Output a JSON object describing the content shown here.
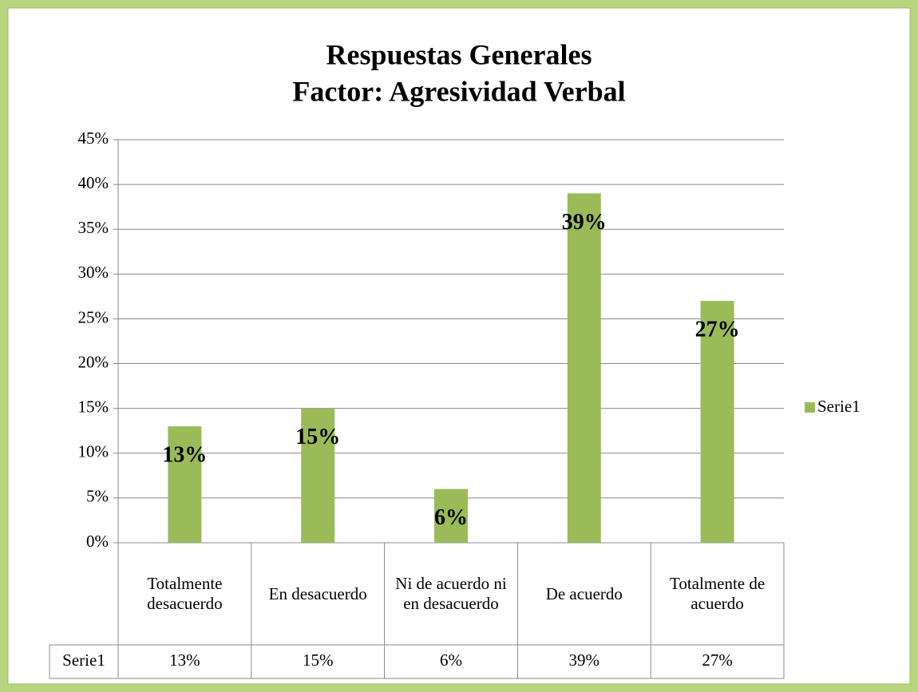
{
  "chart_data": {
    "type": "bar",
    "title": [
      "Respuestas Generales",
      "Factor: Agresividad Verbal"
    ],
    "categories": [
      "Totalmente desacuerdo",
      "En desacuerdo",
      "Ni de acuerdo ni en desacuerdo",
      "De acuerdo",
      "Totalmente de acuerdo"
    ],
    "series": [
      {
        "name": "Serie1",
        "color": "#9bbb59",
        "values": [
          13,
          15,
          6,
          39,
          27
        ],
        "value_labels": [
          "13%",
          "15%",
          "6%",
          "39%",
          "27%"
        ]
      }
    ],
    "ylim": [
      0,
      45
    ],
    "yticks": [
      {
        "value": 0,
        "label": "0%"
      },
      {
        "value": 5,
        "label": "5%"
      },
      {
        "value": 10,
        "label": "10%"
      },
      {
        "value": 15,
        "label": "15%"
      },
      {
        "value": 20,
        "label": "20%"
      },
      {
        "value": 25,
        "label": "25%"
      },
      {
        "value": 30,
        "label": "30%"
      },
      {
        "value": 35,
        "label": "35%"
      },
      {
        "value": 40,
        "label": "40%"
      },
      {
        "value": 45,
        "label": "45%"
      }
    ],
    "grid": true,
    "legend": "right",
    "data_table": true
  }
}
